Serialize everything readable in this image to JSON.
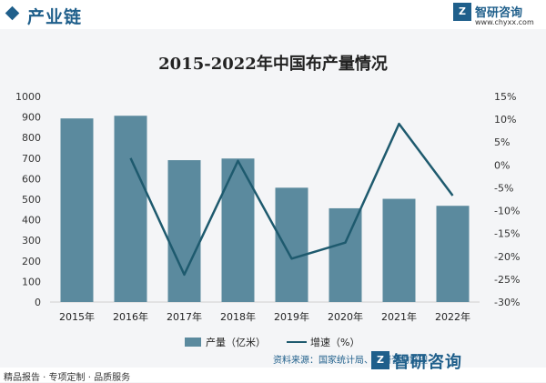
{
  "header": {
    "section_title": "产业链",
    "brand_name": "智研咨询",
    "brand_url": "www.chyxx.com"
  },
  "footer": {
    "source": "资料来源：国家统计局、智研咨询整理",
    "brand": "智研咨询",
    "slogan": "精品报告 · 专项定制 · 品质服务"
  },
  "colors": {
    "bar": "#5b8a9e",
    "line": "#1e5a6e",
    "accent": "#1f5f8b"
  },
  "chart_data": {
    "type": "bar",
    "title": "2015-2022年中国布产量情况",
    "categories": [
      "2015年",
      "2016年",
      "2017年",
      "2018年",
      "2019年",
      "2020年",
      "2021年",
      "2022年"
    ],
    "series": [
      {
        "name": "产量（亿米）",
        "type": "bar",
        "axis": "left",
        "values": [
          893,
          906,
          690,
          698,
          556,
          456,
          502,
          468
        ]
      },
      {
        "name": "增速（%）",
        "type": "line",
        "axis": "right",
        "values": [
          null,
          1.5,
          -24.0,
          0.9,
          -20.5,
          -17.0,
          9.0,
          -6.7
        ]
      }
    ],
    "y_left": {
      "min": 0,
      "max": 1000,
      "ticks": [
        "0",
        "100",
        "200",
        "300",
        "400",
        "500",
        "600",
        "700",
        "800",
        "900",
        "1000"
      ]
    },
    "y_right": {
      "min": -30,
      "max": 15,
      "ticks": [
        "-30%",
        "-25%",
        "-20%",
        "-15%",
        "-10%",
        "-5%",
        "0%",
        "5%",
        "10%",
        "15%"
      ]
    },
    "grid": false,
    "legend": "bottom"
  }
}
